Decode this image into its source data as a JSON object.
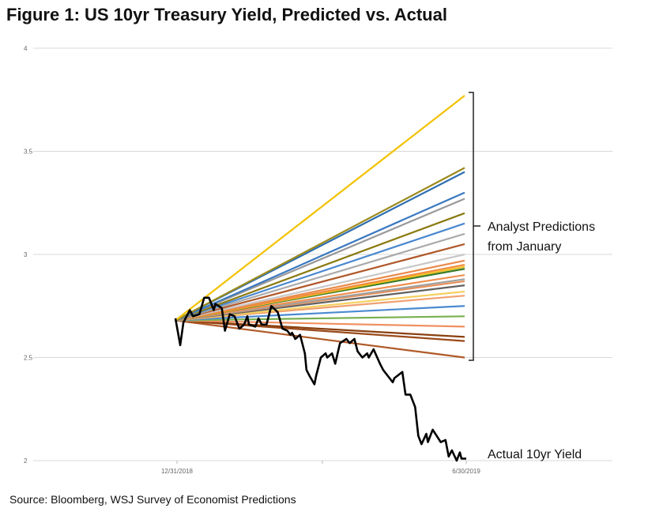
{
  "chart_data": {
    "type": "line",
    "title": "Figure 1: US 10yr Treasury Yield, Predicted vs. Actual",
    "source": "Source: Bloomberg, WSJ Survey of Economist Predictions",
    "xlabel": "",
    "ylabel": "",
    "ylim": [
      2,
      4
    ],
    "yticks": [
      "2",
      "2.5",
      "3",
      "3.5",
      "4"
    ],
    "xlim_days": [
      0,
      181
    ],
    "xticks": [
      {
        "label": "12/31/2018",
        "day": 0
      },
      {
        "label": "",
        "day": 91
      },
      {
        "label": "6/30/2019",
        "day": 181
      }
    ],
    "grid": true,
    "prediction_start": 2.68,
    "predictions": [
      {
        "end": 3.77,
        "color": "#f2c200"
      },
      {
        "end": 3.42,
        "color": "#9c8a1c"
      },
      {
        "end": 3.4,
        "color": "#2e6fb0"
      },
      {
        "end": 3.3,
        "color": "#3a78c0"
      },
      {
        "end": 3.27,
        "color": "#999999"
      },
      {
        "end": 3.2,
        "color": "#8a7a10"
      },
      {
        "end": 3.15,
        "color": "#4a88d0"
      },
      {
        "end": 3.1,
        "color": "#aaaaaa"
      },
      {
        "end": 3.05,
        "color": "#b0582a"
      },
      {
        "end": 3.0,
        "color": "#c8c8c8"
      },
      {
        "end": 2.97,
        "color": "#e98a4a"
      },
      {
        "end": 2.95,
        "color": "#f08c3c"
      },
      {
        "end": 2.94,
        "color": "#f0c020"
      },
      {
        "end": 2.93,
        "color": "#3a7a2a"
      },
      {
        "end": 2.9,
        "color": "#f09050"
      },
      {
        "end": 2.88,
        "color": "#a0a0a0"
      },
      {
        "end": 2.87,
        "color": "#e8905a"
      },
      {
        "end": 2.85,
        "color": "#606060"
      },
      {
        "end": 2.82,
        "color": "#f5d060"
      },
      {
        "end": 2.8,
        "color": "#f0a070"
      },
      {
        "end": 2.75,
        "color": "#4a8ad0"
      },
      {
        "end": 2.7,
        "color": "#78b050"
      },
      {
        "end": 2.65,
        "color": "#f09060"
      },
      {
        "end": 2.6,
        "color": "#8a4010"
      },
      {
        "end": 2.58,
        "color": "#9a4a1a"
      },
      {
        "end": 2.5,
        "color": "#b05a28"
      }
    ],
    "actual": {
      "name": "Actual 10yr Yield",
      "color": "#000000",
      "days": [
        0,
        3,
        5,
        9,
        11,
        15,
        18,
        21,
        24,
        25,
        29,
        31,
        34,
        37,
        40,
        43,
        45,
        46,
        50,
        52,
        54,
        57,
        60,
        64,
        67,
        70,
        72,
        73,
        75,
        78,
        81,
        82,
        84,
        87,
        88,
        91,
        94,
        95,
        98,
        100,
        103,
        107,
        109,
        112,
        114,
        117,
        120,
        121,
        124,
        128,
        130,
        133,
        136,
        137,
        142,
        144,
        147,
        150,
        152,
        154,
        157,
        158,
        161,
        166,
        169,
        171,
        173,
        176,
        178,
        179,
        182
      ],
      "values": [
        2.69,
        2.56,
        2.67,
        2.73,
        2.7,
        2.71,
        2.79,
        2.79,
        2.73,
        2.76,
        2.74,
        2.63,
        2.71,
        2.7,
        2.64,
        2.66,
        2.7,
        2.66,
        2.65,
        2.69,
        2.66,
        2.66,
        2.75,
        2.72,
        2.64,
        2.63,
        2.61,
        2.62,
        2.59,
        2.61,
        2.52,
        2.44,
        2.41,
        2.37,
        2.41,
        2.5,
        2.52,
        2.5,
        2.52,
        2.47,
        2.57,
        2.59,
        2.57,
        2.59,
        2.53,
        2.5,
        2.52,
        2.5,
        2.54,
        2.47,
        2.44,
        2.41,
        2.38,
        2.4,
        2.43,
        2.32,
        2.32,
        2.26,
        2.12,
        2.08,
        2.13,
        2.09,
        2.15,
        2.09,
        2.1,
        2.02,
        2.05,
        2.0,
        2.04,
        2.01,
        2.01
      ]
    },
    "annotations": [
      "Analyst Predictions",
      "from January",
      "Actual 10yr Yield"
    ]
  }
}
